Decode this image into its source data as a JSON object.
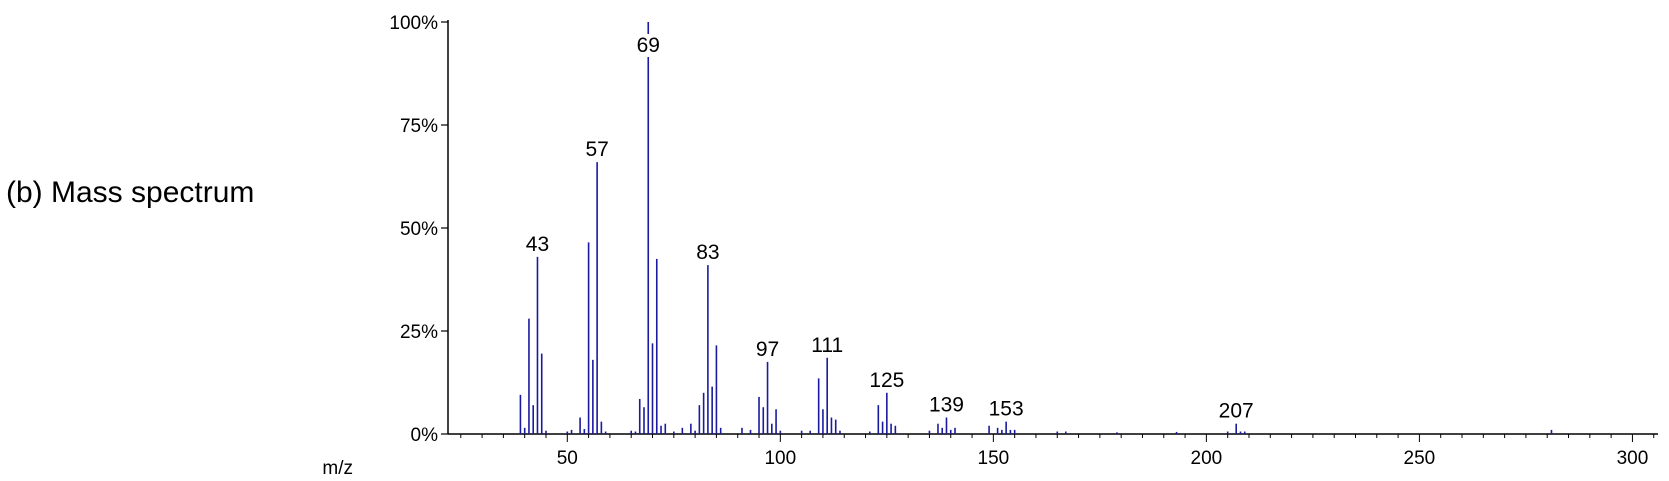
{
  "caption": "(b) Mass spectrum",
  "chart_data": {
    "type": "bar",
    "title": "",
    "xlabel": "m/z",
    "ylabel": "",
    "xlim": [
      22,
      306
    ],
    "ylim": [
      0,
      100
    ],
    "x_ticks": [
      50,
      100,
      150,
      200,
      250,
      300
    ],
    "y_ticks": [
      0,
      25,
      50,
      75,
      100
    ],
    "y_tick_labels": [
      "0%",
      "25%",
      "50%",
      "75%",
      "100%"
    ],
    "grid": false,
    "color": "#1a1aa0",
    "peak_labels": [
      43,
      57,
      69,
      83,
      97,
      111,
      125,
      139,
      153,
      207
    ],
    "peaks": [
      {
        "mz": 39,
        "y": 9.5
      },
      {
        "mz": 40,
        "y": 1.5
      },
      {
        "mz": 41,
        "y": 28
      },
      {
        "mz": 42,
        "y": 7
      },
      {
        "mz": 43,
        "y": 43
      },
      {
        "mz": 44,
        "y": 19.5
      },
      {
        "mz": 45,
        "y": 0.8
      },
      {
        "mz": 50,
        "y": 0.6
      },
      {
        "mz": 51,
        "y": 1.0
      },
      {
        "mz": 53,
        "y": 4.0
      },
      {
        "mz": 54,
        "y": 1.2
      },
      {
        "mz": 55,
        "y": 46.5
      },
      {
        "mz": 56,
        "y": 18
      },
      {
        "mz": 57,
        "y": 66
      },
      {
        "mz": 58,
        "y": 3
      },
      {
        "mz": 59,
        "y": 0.6
      },
      {
        "mz": 65,
        "y": 0.8
      },
      {
        "mz": 66,
        "y": 0.6
      },
      {
        "mz": 67,
        "y": 8.5
      },
      {
        "mz": 68,
        "y": 6.5
      },
      {
        "mz": 69,
        "y": 100
      },
      {
        "mz": 70,
        "y": 22
      },
      {
        "mz": 71,
        "y": 42.5
      },
      {
        "mz": 72,
        "y": 2
      },
      {
        "mz": 73,
        "y": 2.5
      },
      {
        "mz": 75,
        "y": 0.6
      },
      {
        "mz": 77,
        "y": 1.5
      },
      {
        "mz": 79,
        "y": 2.5
      },
      {
        "mz": 80,
        "y": 0.8
      },
      {
        "mz": 81,
        "y": 7
      },
      {
        "mz": 82,
        "y": 10
      },
      {
        "mz": 83,
        "y": 41
      },
      {
        "mz": 84,
        "y": 11.5
      },
      {
        "mz": 85,
        "y": 21.5
      },
      {
        "mz": 86,
        "y": 1.5
      },
      {
        "mz": 91,
        "y": 1.5
      },
      {
        "mz": 93,
        "y": 1.0
      },
      {
        "mz": 95,
        "y": 9
      },
      {
        "mz": 96,
        "y": 6.5
      },
      {
        "mz": 97,
        "y": 17.5
      },
      {
        "mz": 98,
        "y": 2.5
      },
      {
        "mz": 99,
        "y": 6
      },
      {
        "mz": 100,
        "y": 0.8
      },
      {
        "mz": 105,
        "y": 0.8
      },
      {
        "mz": 107,
        "y": 0.8
      },
      {
        "mz": 109,
        "y": 13.5
      },
      {
        "mz": 110,
        "y": 6
      },
      {
        "mz": 111,
        "y": 18.5
      },
      {
        "mz": 112,
        "y": 4
      },
      {
        "mz": 113,
        "y": 3.5
      },
      {
        "mz": 114,
        "y": 0.8
      },
      {
        "mz": 121,
        "y": 0.6
      },
      {
        "mz": 123,
        "y": 7
      },
      {
        "mz": 124,
        "y": 3
      },
      {
        "mz": 125,
        "y": 10
      },
      {
        "mz": 126,
        "y": 2.5
      },
      {
        "mz": 127,
        "y": 2
      },
      {
        "mz": 135,
        "y": 0.8
      },
      {
        "mz": 137,
        "y": 2.5
      },
      {
        "mz": 138,
        "y": 1.5
      },
      {
        "mz": 139,
        "y": 4
      },
      {
        "mz": 140,
        "y": 1
      },
      {
        "mz": 141,
        "y": 1.5
      },
      {
        "mz": 149,
        "y": 2
      },
      {
        "mz": 151,
        "y": 1.5
      },
      {
        "mz": 152,
        "y": 1
      },
      {
        "mz": 153,
        "y": 3
      },
      {
        "mz": 154,
        "y": 1
      },
      {
        "mz": 155,
        "y": 1.0
      },
      {
        "mz": 165,
        "y": 0.6
      },
      {
        "mz": 167,
        "y": 0.6
      },
      {
        "mz": 179,
        "y": 0.4
      },
      {
        "mz": 193,
        "y": 0.5
      },
      {
        "mz": 205,
        "y": 0.6
      },
      {
        "mz": 207,
        "y": 2.5
      },
      {
        "mz": 208,
        "y": 0.6
      },
      {
        "mz": 209,
        "y": 0.6
      },
      {
        "mz": 281,
        "y": 1.0
      }
    ]
  }
}
